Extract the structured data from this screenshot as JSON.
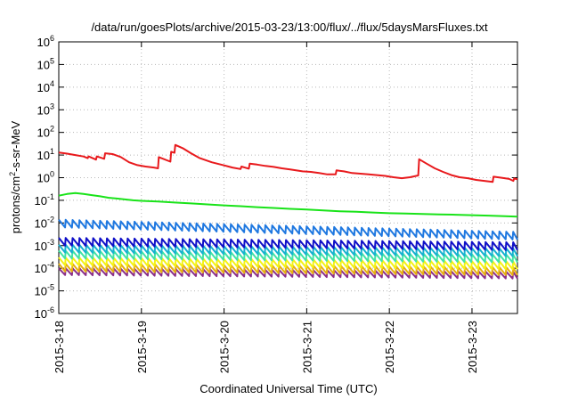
{
  "chart_data": {
    "type": "line",
    "title": "/data/run/goesPlots/archive/2015-03-23/13:00/flux/../flux/5daysMarsFluxes.txt",
    "xlabel": "Coordinated Universal Time (UTC)",
    "ylabel": {
      "prefix": "protons/cm",
      "sup": "2",
      "suffix": "-s-sr-MeV"
    },
    "yscale": "log",
    "ylim_exp": [
      -6,
      6
    ],
    "y_tick_exps": [
      -6,
      -5,
      -4,
      -3,
      -2,
      -1,
      0,
      1,
      2,
      3,
      4,
      5,
      6
    ],
    "y_tick_base": "10",
    "x_unit": "days",
    "x_range_days": [
      0,
      5.55
    ],
    "x_ticks": [
      {
        "label": "2015-3-18",
        "day": 0
      },
      {
        "label": "2015-3-19",
        "day": 1
      },
      {
        "label": "2015-3-20",
        "day": 2
      },
      {
        "label": "2015-3-21",
        "day": 3
      },
      {
        "label": "2015-3-22",
        "day": 4
      },
      {
        "label": "2015-3-23",
        "day": 5
      }
    ],
    "grid": true,
    "series": [
      {
        "color": "#e8191c",
        "points": [
          [
            0,
            13
          ],
          [
            0.1,
            11.5
          ],
          [
            0.2,
            10
          ],
          [
            0.3,
            8.6
          ],
          [
            0.35,
            7.3
          ],
          [
            0.36,
            8.7
          ],
          [
            0.45,
            6.3
          ],
          [
            0.46,
            8.7
          ],
          [
            0.55,
            6.8
          ],
          [
            0.56,
            12
          ],
          [
            0.65,
            11
          ],
          [
            0.75,
            8.2
          ],
          [
            0.85,
            4.8
          ],
          [
            0.95,
            3.6
          ],
          [
            1.05,
            3.1
          ],
          [
            1.15,
            2.8
          ],
          [
            1.2,
            2.6
          ],
          [
            1.21,
            8.1
          ],
          [
            1.35,
            5.1
          ],
          [
            1.36,
            14
          ],
          [
            1.4,
            12.5
          ],
          [
            1.41,
            28
          ],
          [
            1.5,
            20
          ],
          [
            1.6,
            12
          ],
          [
            1.7,
            7.5
          ],
          [
            1.85,
            4.8
          ],
          [
            2.0,
            3.5
          ],
          [
            2.1,
            2.8
          ],
          [
            2.2,
            2.4
          ],
          [
            2.21,
            3.1
          ],
          [
            2.3,
            2.5
          ],
          [
            2.31,
            4.2
          ],
          [
            2.4,
            3.8
          ],
          [
            2.5,
            3.3
          ],
          [
            2.6,
            3.0
          ],
          [
            2.7,
            2.6
          ],
          [
            2.8,
            2.3
          ],
          [
            2.95,
            1.9
          ],
          [
            3.05,
            1.8
          ],
          [
            3.15,
            1.6
          ],
          [
            3.25,
            1.4
          ],
          [
            3.35,
            1.4
          ],
          [
            3.36,
            2.1
          ],
          [
            3.45,
            1.9
          ],
          [
            3.55,
            1.6
          ],
          [
            3.65,
            1.5
          ],
          [
            3.75,
            1.4
          ],
          [
            3.85,
            1.3
          ],
          [
            3.95,
            1.2
          ],
          [
            4.05,
            1.05
          ],
          [
            4.15,
            0.95
          ],
          [
            4.25,
            1.05
          ],
          [
            4.35,
            1.25
          ],
          [
            4.36,
            6.5
          ],
          [
            4.45,
            4.2
          ],
          [
            4.55,
            2.6
          ],
          [
            4.65,
            1.8
          ],
          [
            4.75,
            1.3
          ],
          [
            4.85,
            1.05
          ],
          [
            4.95,
            0.95
          ],
          [
            5.05,
            0.8
          ],
          [
            5.15,
            0.72
          ],
          [
            5.25,
            0.65
          ],
          [
            5.26,
            1.1
          ],
          [
            5.35,
            1.0
          ],
          [
            5.45,
            0.88
          ],
          [
            5.5,
            0.72
          ],
          [
            5.51,
            0.92
          ],
          [
            5.55,
            0.85
          ]
        ]
      },
      {
        "color": "#19e319",
        "points": [
          [
            0,
            0.16
          ],
          [
            0.1,
            0.19
          ],
          [
            0.2,
            0.21
          ],
          [
            0.3,
            0.19
          ],
          [
            0.4,
            0.17
          ],
          [
            0.5,
            0.15
          ],
          [
            0.6,
            0.13
          ],
          [
            0.7,
            0.12
          ],
          [
            0.8,
            0.11
          ],
          [
            0.9,
            0.1
          ],
          [
            1.0,
            0.095
          ],
          [
            1.2,
            0.088
          ],
          [
            1.4,
            0.08
          ],
          [
            1.6,
            0.073
          ],
          [
            1.8,
            0.066
          ],
          [
            2.0,
            0.06
          ],
          [
            2.2,
            0.055
          ],
          [
            2.4,
            0.05
          ],
          [
            2.6,
            0.046
          ],
          [
            2.8,
            0.042
          ],
          [
            3.0,
            0.039
          ],
          [
            3.2,
            0.036
          ],
          [
            3.4,
            0.033
          ],
          [
            3.6,
            0.031
          ],
          [
            3.8,
            0.029
          ],
          [
            4.0,
            0.027
          ],
          [
            4.2,
            0.026
          ],
          [
            4.4,
            0.025
          ],
          [
            4.6,
            0.024
          ],
          [
            4.8,
            0.023
          ],
          [
            5.0,
            0.022
          ],
          [
            5.2,
            0.021
          ],
          [
            5.4,
            0.02
          ],
          [
            5.55,
            0.019
          ]
        ]
      }
    ],
    "sawtooth_series": [
      {
        "color": "#1f78e0",
        "start": 0.014,
        "end": 0.004,
        "depth": 0.45
      },
      {
        "color": "#1010c8",
        "start": 0.0022,
        "end": 0.0014,
        "depth": 0.45
      },
      {
        "color": "#17b2cf",
        "start": 0.0011,
        "end": 0.00075,
        "depth": 0.45
      },
      {
        "color": "#42e3a6",
        "start": 0.0006,
        "end": 0.0004,
        "depth": 0.45
      },
      {
        "color": "#f4f216",
        "start": 0.0003,
        "end": 0.0002,
        "depth": 0.45
      },
      {
        "color": "#e6b010",
        "start": 0.00016,
        "end": 0.00011,
        "depth": 0.45
      },
      {
        "color": "#8b2f8a",
        "start": 0.0001,
        "end": 7e-05,
        "depth": 0.5
      }
    ],
    "sawtooth_period_days": 0.0833
  }
}
